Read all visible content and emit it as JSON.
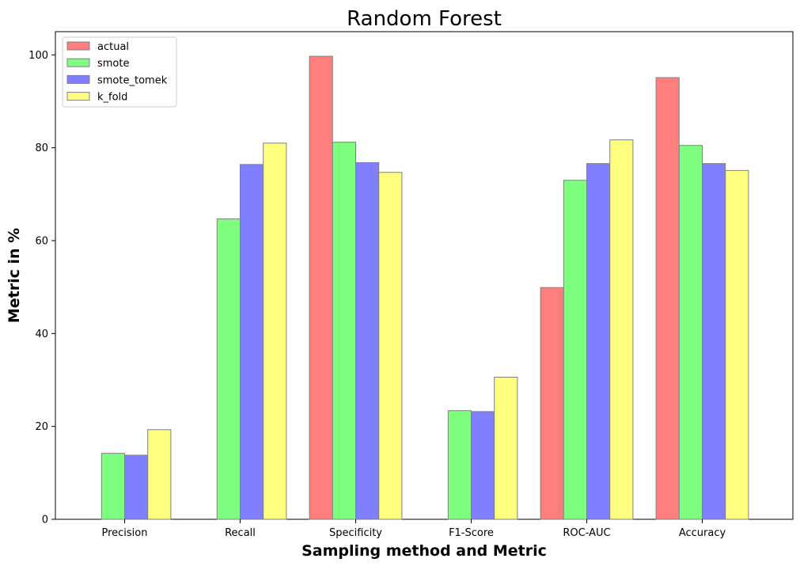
{
  "chart_data": {
    "type": "bar",
    "title": "Random Forest",
    "xlabel": "Sampling method and Metric",
    "ylabel": "Metric in %",
    "categories": [
      "Precision",
      "Recall",
      "Specificity",
      "F1-Score",
      "ROC-AUC",
      "Accuracy"
    ],
    "ylim": [
      0,
      105
    ],
    "yticks": [
      0,
      20,
      40,
      60,
      80,
      100
    ],
    "series": [
      {
        "name": "actual",
        "color": "#ff7f7f",
        "values": [
          0,
          0,
          99.7,
          0,
          49.9,
          95.1
        ]
      },
      {
        "name": "smote",
        "color": "#7fff7f",
        "values": [
          14.2,
          64.7,
          81.2,
          23.4,
          73.0,
          80.5
        ]
      },
      {
        "name": "smote_tomek",
        "color": "#7f7fff",
        "values": [
          13.8,
          76.4,
          76.8,
          23.2,
          76.6,
          76.6
        ]
      },
      {
        "name": "k_fold",
        "color": "#ffff7f",
        "values": [
          19.3,
          81.0,
          74.7,
          30.6,
          81.7,
          75.1
        ]
      }
    ],
    "bar_edge_color": "#808080",
    "grid": false,
    "legend_position": "upper-left"
  }
}
